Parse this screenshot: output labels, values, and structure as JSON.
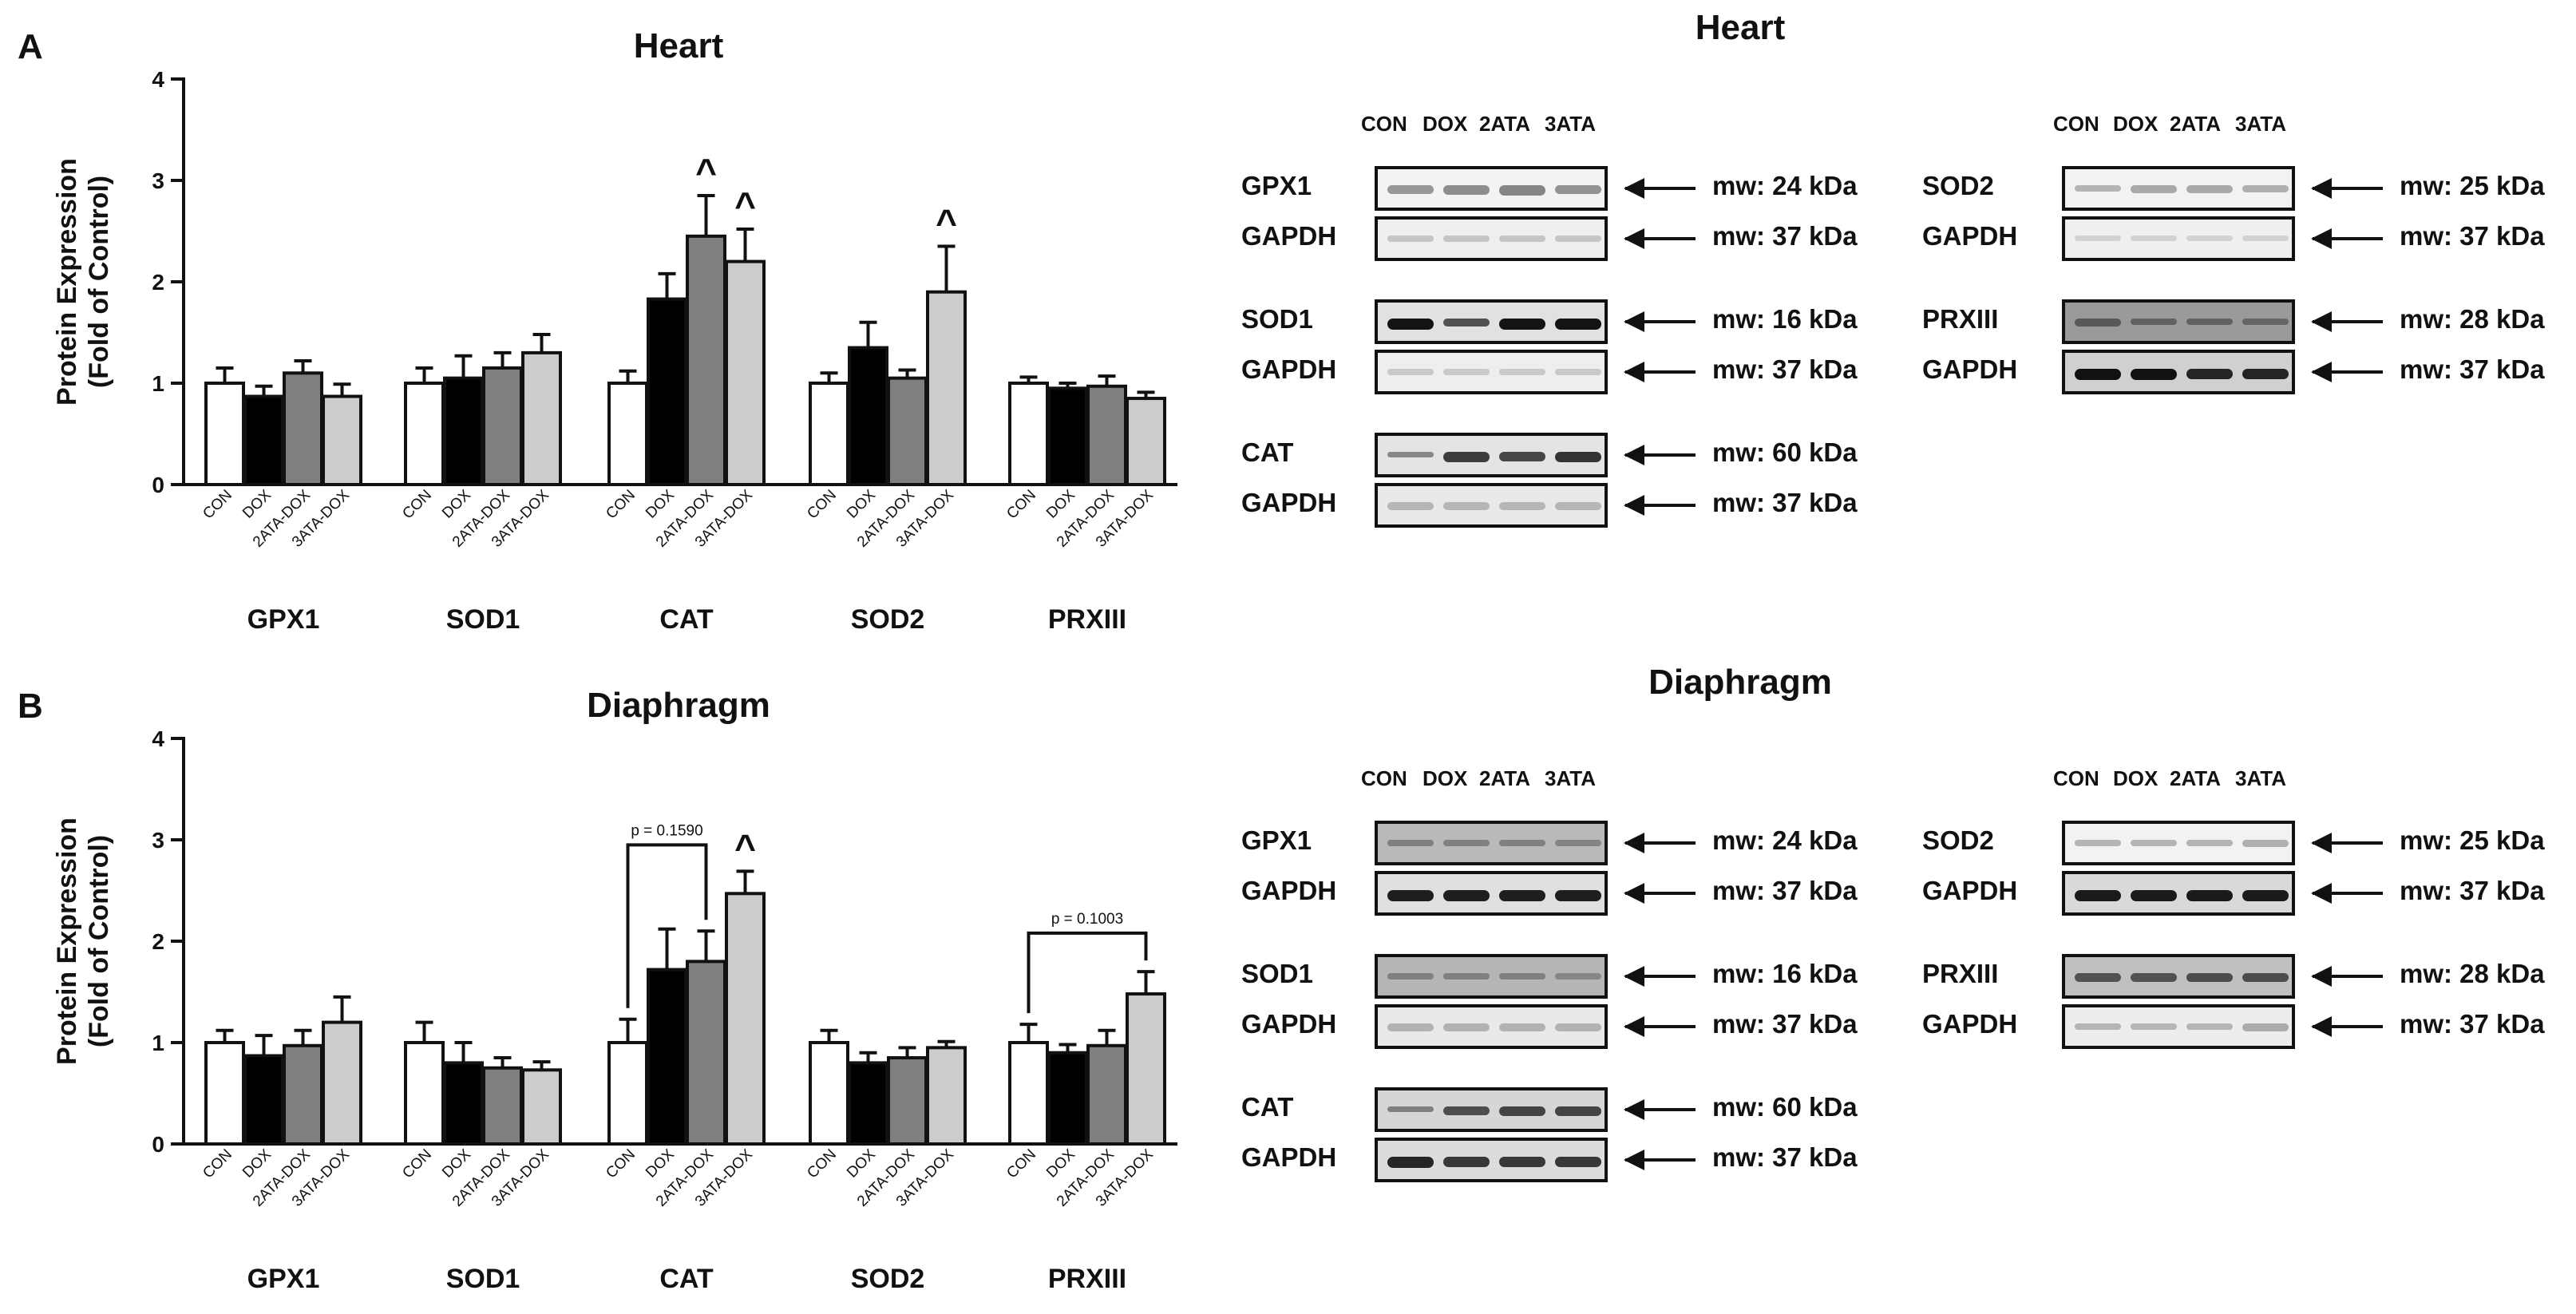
{
  "panels": [
    {
      "letter": "A",
      "chart_data": {
        "type": "bar",
        "title": "Heart",
        "ylabel_line1": "Protein Expression",
        "ylabel_line2": "(Fold of Control)",
        "ylim": [
          0,
          4
        ],
        "yticks": [
          "0",
          "1",
          "2",
          "3",
          "4"
        ],
        "categories": [
          "CON",
          "DOX",
          "2ATA-DOX",
          "3ATA-DOX"
        ],
        "series_colors": [
          "#ffffff",
          "#000000",
          "#7f7f7f",
          "#cccccc"
        ],
        "groups": [
          {
            "name": "GPX1",
            "values": [
              1.0,
              0.87,
              1.1,
              0.87
            ],
            "errors": [
              0.15,
              0.1,
              0.12,
              0.12
            ],
            "marks": [
              "",
              "",
              "",
              ""
            ]
          },
          {
            "name": "SOD1",
            "values": [
              1.0,
              1.05,
              1.15,
              1.3
            ],
            "errors": [
              0.15,
              0.22,
              0.15,
              0.18
            ],
            "marks": [
              "",
              "",
              "",
              ""
            ]
          },
          {
            "name": "CAT",
            "values": [
              1.0,
              1.83,
              2.45,
              2.2
            ],
            "errors": [
              0.12,
              0.25,
              0.4,
              0.32
            ],
            "marks": [
              "",
              "",
              "^",
              "^"
            ]
          },
          {
            "name": "SOD2",
            "values": [
              1.0,
              1.35,
              1.05,
              1.9
            ],
            "errors": [
              0.1,
              0.25,
              0.08,
              0.45
            ],
            "marks": [
              "",
              "",
              "",
              "^"
            ]
          },
          {
            "name": "PRXIII",
            "values": [
              1.0,
              0.95,
              0.97,
              0.85
            ],
            "errors": [
              0.06,
              0.05,
              0.1,
              0.06
            ],
            "marks": [
              "",
              "",
              "",
              ""
            ]
          }
        ],
        "brackets": []
      },
      "blots": {
        "title": "Heart",
        "lanes": [
          "CON",
          "DOX",
          "2ATA",
          "3ATA"
        ],
        "left": [
          {
            "label": "GPX1",
            "mw": "mw: 24 kDa",
            "bg": "#f3f3f3",
            "band": "#7a7a7a",
            "intensity": [
              0.75,
              0.85,
              0.9,
              0.8
            ]
          },
          {
            "label": "GAPDH",
            "mw": "mw: 37 kDa",
            "bg": "#efefef",
            "band": "#a9a9a9",
            "intensity": [
              0.6,
              0.6,
              0.6,
              0.6
            ]
          },
          {
            "label": "SOD1",
            "mw": "mw: 16 kDa",
            "bg": "#e1e1e1",
            "band": "#141414",
            "intensity": [
              1.0,
              0.7,
              1.0,
              1.0
            ]
          },
          {
            "label": "GAPDH",
            "mw": "mw: 37 kDa",
            "bg": "#eeeeee",
            "band": "#b0b0b0",
            "intensity": [
              0.6,
              0.6,
              0.6,
              0.6
            ]
          },
          {
            "label": "CAT",
            "mw": "mw: 60 kDa",
            "bg": "#e4e4e4",
            "band": "#2a2a2a",
            "intensity": [
              0.5,
              0.9,
              0.85,
              0.95
            ]
          },
          {
            "label": "GAPDH",
            "mw": "mw: 37 kDa",
            "bg": "#e9e9e9",
            "band": "#a0a0a0",
            "intensity": [
              0.7,
              0.7,
              0.7,
              0.7
            ]
          }
        ],
        "right": [
          {
            "label": "SOD2",
            "mw": "mw: 25 kDa",
            "bg": "#f2f2f2",
            "band": "#8a8a8a",
            "intensity": [
              0.6,
              0.7,
              0.7,
              0.65
            ]
          },
          {
            "label": "GAPDH",
            "mw": "mw: 37 kDa",
            "bg": "#efefef",
            "band": "#b5b5b5",
            "intensity": [
              0.5,
              0.5,
              0.5,
              0.5
            ]
          },
          {
            "label": "PRXIII",
            "mw": "mw: 28 kDa",
            "bg": "#9a9a9a",
            "band": "#3c3c3c",
            "intensity": [
              0.7,
              0.6,
              0.6,
              0.55
            ]
          },
          {
            "label": "GAPDH",
            "mw": "mw: 37 kDa",
            "bg": "#d0d0d0",
            "band": "#111111",
            "intensity": [
              1.0,
              1.0,
              0.9,
              0.9
            ]
          }
        ]
      }
    },
    {
      "letter": "B",
      "chart_data": {
        "type": "bar",
        "title": "Diaphragm",
        "ylabel_line1": "Protein Expression",
        "ylabel_line2": "(Fold of Control)",
        "ylim": [
          0,
          4
        ],
        "yticks": [
          "0",
          "1",
          "2",
          "3",
          "4"
        ],
        "categories": [
          "CON",
          "DOX",
          "2ATA-DOX",
          "3ATA-DOX"
        ],
        "series_colors": [
          "#ffffff",
          "#000000",
          "#7f7f7f",
          "#cccccc"
        ],
        "groups": [
          {
            "name": "GPX1",
            "values": [
              1.0,
              0.87,
              0.97,
              1.2
            ],
            "errors": [
              0.12,
              0.2,
              0.15,
              0.25
            ],
            "marks": [
              "",
              "",
              "",
              ""
            ]
          },
          {
            "name": "SOD1",
            "values": [
              1.0,
              0.8,
              0.75,
              0.73
            ],
            "errors": [
              0.2,
              0.2,
              0.1,
              0.08
            ],
            "marks": [
              "",
              "",
              "",
              ""
            ]
          },
          {
            "name": "CAT",
            "values": [
              1.0,
              1.72,
              1.8,
              2.47
            ],
            "errors": [
              0.23,
              0.4,
              0.3,
              0.22
            ],
            "marks": [
              "",
              "",
              "",
              "^"
            ]
          },
          {
            "name": "SOD2",
            "values": [
              1.0,
              0.8,
              0.85,
              0.95
            ],
            "errors": [
              0.12,
              0.1,
              0.1,
              0.06
            ],
            "marks": [
              "",
              "",
              "",
              ""
            ]
          },
          {
            "name": "PRXIII",
            "values": [
              1.0,
              0.9,
              0.97,
              1.48
            ],
            "errors": [
              0.18,
              0.08,
              0.15,
              0.22
            ],
            "marks": [
              "",
              "",
              "",
              ""
            ]
          }
        ],
        "brackets": [
          {
            "group": 2,
            "from": 0,
            "to": 2,
            "y": 2.95,
            "label": "p = 0.1590"
          },
          {
            "group": 4,
            "from": 0,
            "to": 3,
            "y": 2.08,
            "label": "p = 0.1003"
          }
        ]
      },
      "blots": {
        "title": "Diaphragm",
        "lanes": [
          "CON",
          "DOX",
          "2ATA",
          "3ATA"
        ],
        "left": [
          {
            "label": "GPX1",
            "mw": "mw: 24 kDa",
            "bg": "#b9b9b9",
            "band": "#5a5a5a",
            "intensity": [
              0.6,
              0.6,
              0.6,
              0.55
            ]
          },
          {
            "label": "GAPDH",
            "mw": "mw: 37 kDa",
            "bg": "#e0e0e0",
            "band": "#1e1e1e",
            "intensity": [
              1.0,
              1.0,
              1.0,
              1.0
            ]
          },
          {
            "label": "SOD1",
            "mw": "mw: 16 kDa",
            "bg": "#b5b5b5",
            "band": "#5e5e5e",
            "intensity": [
              0.6,
              0.6,
              0.6,
              0.55
            ]
          },
          {
            "label": "GAPDH",
            "mw": "mw: 37 kDa",
            "bg": "#e9e9e9",
            "band": "#9a9a9a",
            "intensity": [
              0.7,
              0.7,
              0.7,
              0.7
            ]
          },
          {
            "label": "CAT",
            "mw": "mw: 60 kDa",
            "bg": "#d6d6d6",
            "band": "#2a2a2a",
            "intensity": [
              0.5,
              0.8,
              0.85,
              0.85
            ]
          },
          {
            "label": "GAPDH",
            "mw": "mw: 37 kDa",
            "bg": "#dcdcdc",
            "band": "#262626",
            "intensity": [
              1.0,
              0.9,
              0.9,
              0.9
            ]
          }
        ],
        "right": [
          {
            "label": "SOD2",
            "mw": "mw: 25 kDa",
            "bg": "#f2f2f2",
            "band": "#8c8c8c",
            "intensity": [
              0.6,
              0.6,
              0.6,
              0.65
            ]
          },
          {
            "label": "GAPDH",
            "mw": "mw: 37 kDa",
            "bg": "#d9d9d9",
            "band": "#1a1a1a",
            "intensity": [
              1.0,
              1.0,
              1.0,
              1.0
            ]
          },
          {
            "label": "PRXIII",
            "mw": "mw: 28 kDa",
            "bg": "#c0c0c0",
            "band": "#2e2e2e",
            "intensity": [
              0.75,
              0.75,
              0.8,
              0.8
            ]
          },
          {
            "label": "GAPDH",
            "mw": "mw: 37 kDa",
            "bg": "#ededed",
            "band": "#8f8f8f",
            "intensity": [
              0.6,
              0.6,
              0.6,
              0.7
            ]
          }
        ]
      }
    }
  ]
}
